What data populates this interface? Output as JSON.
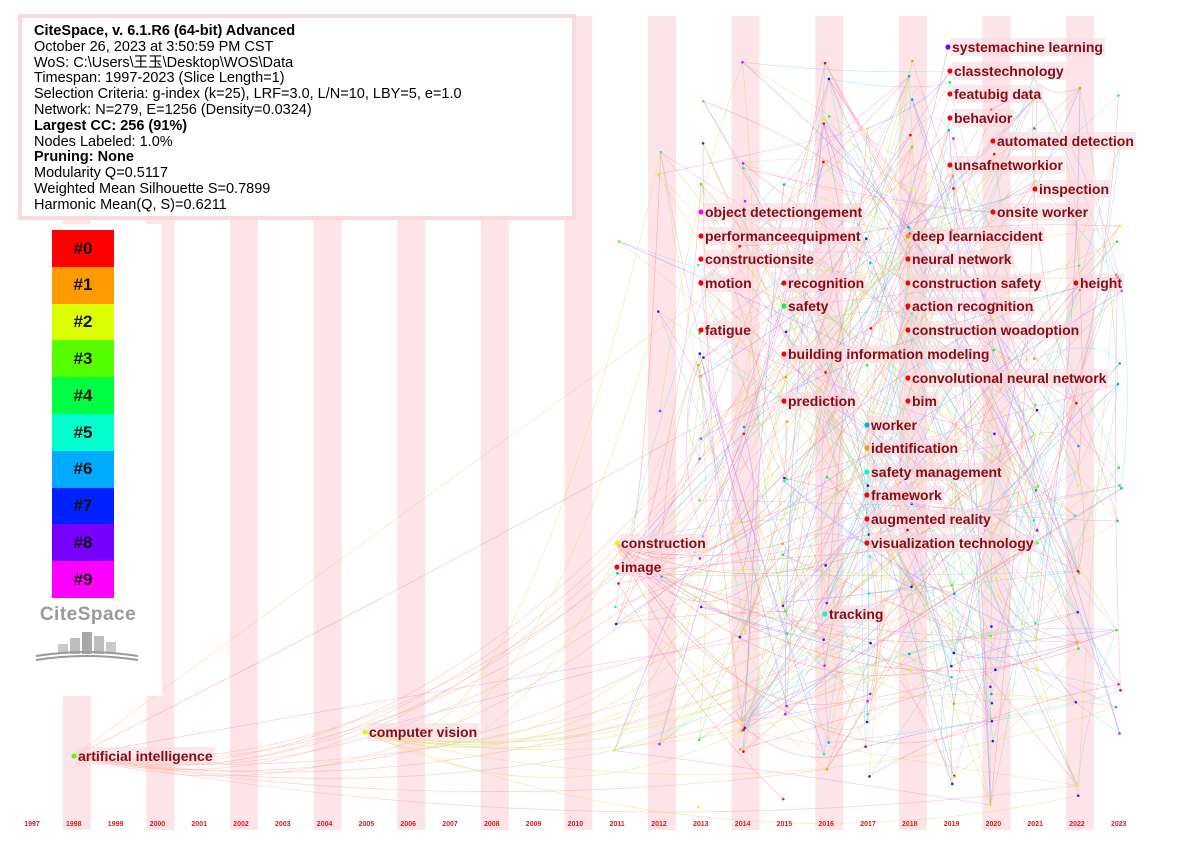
{
  "info": {
    "lines": [
      {
        "text": "CiteSpace, v. 6.1.R6 (64-bit) Advanced",
        "bold": true
      },
      {
        "text": "October 26, 2023 at 3:50:59 PM CST",
        "bold": false
      },
      {
        "text": "WoS: C:\\Users\\王玉\\Desktop\\WOS\\Data",
        "bold": false
      },
      {
        "text": "Timespan: 1997-2023 (Slice Length=1)",
        "bold": false
      },
      {
        "text": "Selection Criteria: g-index (k=25), LRF=3.0, L/N=10, LBY=5, e=1.0",
        "bold": false
      },
      {
        "text": "Network: N=279, E=1256 (Density=0.0324)",
        "bold": false
      },
      {
        "text": "Largest CC: 256 (91%)",
        "bold": true
      },
      {
        "text": "Nodes Labeled: 1.0%",
        "bold": false
      },
      {
        "text": "Pruning: None",
        "bold": true
      },
      {
        "text": "Modularity Q=0.5117",
        "bold": false
      },
      {
        "text": "Weighted Mean Silhouette S=0.7899",
        "bold": false
      },
      {
        "text": "Harmonic Mean(Q, S)=0.6211",
        "bold": false
      }
    ]
  },
  "legend": {
    "items": [
      {
        "label": "#0",
        "color": "#ff0000"
      },
      {
        "label": "#1",
        "color": "#ff9a00"
      },
      {
        "label": "#2",
        "color": "#d9ff00"
      },
      {
        "label": "#3",
        "color": "#55ff00"
      },
      {
        "label": "#4",
        "color": "#00ff44"
      },
      {
        "label": "#5",
        "color": "#00ffcc"
      },
      {
        "label": "#6",
        "color": "#00aaff"
      },
      {
        "label": "#7",
        "color": "#0022ff"
      },
      {
        "label": "#8",
        "color": "#7700ff"
      },
      {
        "label": "#9",
        "color": "#ff00ff"
      }
    ],
    "logo_text": "CiteSpace"
  },
  "chart_data": {
    "type": "scatter",
    "title": "",
    "xlabel": "",
    "ylabel": "",
    "x_ticks": [
      "1997",
      "1998",
      "1999",
      "2000",
      "2001",
      "2002",
      "2003",
      "2004",
      "2005",
      "2006",
      "2007",
      "2008",
      "2009",
      "2010",
      "2011",
      "2012",
      "2013",
      "2014",
      "2015",
      "2016",
      "2017",
      "2018",
      "2019",
      "2020",
      "2021",
      "2022",
      "2023"
    ],
    "keywords": [
      {
        "label": "systemachine learning",
        "year": 2019,
        "color": "#7700ff"
      },
      {
        "label": "classtechnology",
        "year": 2019,
        "color": "#ff0000"
      },
      {
        "label": "featubig data",
        "year": 2019,
        "color": "#ff0000"
      },
      {
        "label": "behavior",
        "year": 2019,
        "color": "#ff0000"
      },
      {
        "label": "automated detection",
        "year": 2020,
        "color": "#ff0000"
      },
      {
        "label": "unsafnetworkior",
        "year": 2019,
        "color": "#ff0000"
      },
      {
        "label": "inspection",
        "year": 2021,
        "color": "#ff0000"
      },
      {
        "label": "object detectiongement",
        "year": 2013,
        "color": "#ff00ff"
      },
      {
        "label": "onsite worker",
        "year": 2020,
        "color": "#ff0000"
      },
      {
        "label": "performanceequipment",
        "year": 2013,
        "color": "#ff0000"
      },
      {
        "label": "deep learniaccident",
        "year": 2018,
        "color": "#ff9a00"
      },
      {
        "label": "constructionsite",
        "year": 2013,
        "color": "#ff0000"
      },
      {
        "label": "neural network",
        "year": 2018,
        "color": "#ff0000"
      },
      {
        "label": "motion",
        "year": 2013,
        "color": "#ff0000"
      },
      {
        "label": "recognition",
        "year": 2015,
        "color": "#ff0000"
      },
      {
        "label": "construction safety",
        "year": 2018,
        "color": "#ff0000"
      },
      {
        "label": "height",
        "year": 2022,
        "color": "#ff0000"
      },
      {
        "label": "safety",
        "year": 2015,
        "color": "#00ff44"
      },
      {
        "label": "action recognition",
        "year": 2018,
        "color": "#ff0000"
      },
      {
        "label": "fatigue",
        "year": 2013,
        "color": "#ff0000"
      },
      {
        "label": "construction woadoption",
        "year": 2018,
        "color": "#ff0000"
      },
      {
        "label": "building information modeling",
        "year": 2015,
        "color": "#ff0000"
      },
      {
        "label": "convolutional neural network",
        "year": 2018,
        "color": "#ff0000"
      },
      {
        "label": "prediction",
        "year": 2015,
        "color": "#ff0000"
      },
      {
        "label": "bim",
        "year": 2018,
        "color": "#ff0000"
      },
      {
        "label": "worker",
        "year": 2017,
        "color": "#00aaff"
      },
      {
        "label": "identification",
        "year": 2017,
        "color": "#ff9a00"
      },
      {
        "label": "safety management",
        "year": 2017,
        "color": "#00ffcc"
      },
      {
        "label": "framework",
        "year": 2017,
        "color": "#ff0000"
      },
      {
        "label": "augmented reality",
        "year": 2017,
        "color": "#ff0000"
      },
      {
        "label": "visualization technology",
        "year": 2017,
        "color": "#ff0000"
      },
      {
        "label": "construction",
        "year": 2011,
        "color": "#d9ff00"
      },
      {
        "label": "image",
        "year": 2011,
        "color": "#ff0000"
      },
      {
        "label": "tracking",
        "year": 2016,
        "color": "#00ffcc"
      },
      {
        "label": "computer vision",
        "year": 2005,
        "color": "#d9ff00"
      },
      {
        "label": "artificial intelligence",
        "year": 1998,
        "color": "#55ff00"
      }
    ]
  }
}
